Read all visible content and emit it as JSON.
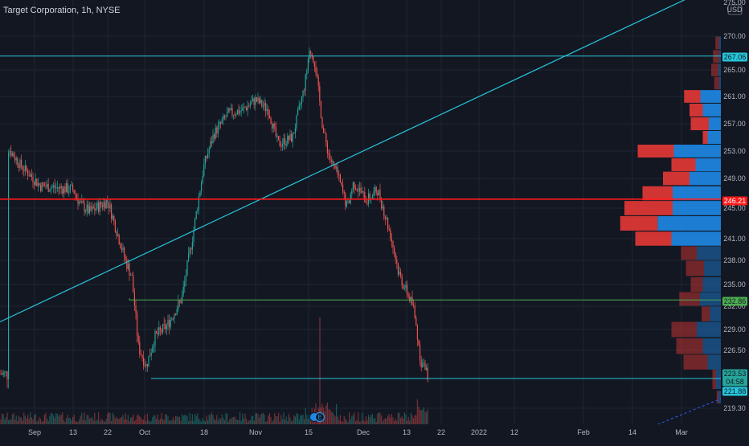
{
  "header": {
    "title": "Target Corporation, 1h, NYSE",
    "currency_top": "275.00",
    "currency": "USD"
  },
  "colors": {
    "background": "#131722",
    "grid": "#1e2433",
    "up": "#26a69a",
    "down": "#ef5350",
    "cyan_line": "#26c6da",
    "red_line": "#ff1a1a",
    "green_line": "#4caf50",
    "vp_buy": "#1e88e5",
    "vp_sell": "#e53935"
  },
  "chart_data": {
    "type": "candlestick",
    "title": "Target Corporation, 1h, NYSE",
    "y_unit": "USD",
    "ylim": [
      217.0,
      275.0
    ],
    "x_ticks": [
      "Sep",
      "13",
      "22",
      "Oct",
      "18",
      "Nov",
      "15",
      "Dec",
      "13",
      "22",
      "2022",
      "12",
      "Feb",
      "14",
      "Mar"
    ],
    "y_ticks": [
      270.0,
      265.0,
      261.0,
      257.0,
      253.0,
      249.0,
      245.0,
      241.0,
      238.0,
      235.0,
      232.0,
      229.0,
      226.5,
      219.3
    ],
    "price_tags": [
      {
        "label": "267.06",
        "value": 267.06,
        "color": "#26c6da",
        "text_color": "#131722"
      },
      {
        "label": "246.21",
        "value": 246.21,
        "color": "#ff1a1a",
        "text_color": "#ffffff"
      },
      {
        "label": "232.86",
        "value": 232.86,
        "color": "#4caf50",
        "text_color": "#131722"
      },
      {
        "label": "223.53",
        "value": 223.53,
        "color": "#26a69a",
        "text_color": "#131722"
      },
      {
        "label": "04:58",
        "value": 222.6,
        "color": "#26a69a",
        "text_color": "#131722"
      },
      {
        "label": "221.88",
        "value": 221.88,
        "color": "#26c6da",
        "text_color": "#131722"
      }
    ],
    "horizontal_levels": [
      267.06,
      246.21,
      232.86,
      221.88
    ],
    "series": [
      {
        "name": "close",
        "points": [
          [
            "Sep",
            253.5
          ],
          [
            "Sep 5",
            251.0
          ],
          [
            "Sep 8",
            248.0
          ],
          [
            "13",
            247.5
          ],
          [
            "Sep 16",
            245.5
          ],
          [
            "Sep 19",
            244.5
          ],
          [
            "22",
            246.0
          ],
          [
            "Sep 25",
            241.0
          ],
          [
            "Sep 27",
            238.0
          ],
          [
            "Sep 28",
            236.0
          ],
          [
            "Sep 29",
            227.0
          ],
          [
            "Oct",
            224.5
          ],
          [
            "Oct 4",
            228.0
          ],
          [
            "Oct 7",
            229.5
          ],
          [
            "Oct 11",
            233.0
          ],
          [
            "Oct 14",
            241.5
          ],
          [
            "18",
            251.0
          ],
          [
            "Oct 21",
            255.5
          ],
          [
            "Oct 25",
            258.5
          ],
          [
            "Oct 28",
            259.0
          ],
          [
            "Nov",
            260.5
          ],
          [
            "Nov 5",
            259.0
          ],
          [
            "Nov 8",
            254.0
          ],
          [
            "Nov 11",
            255.0
          ],
          [
            "15",
            262.0
          ],
          [
            "Nov 16",
            268.0
          ],
          [
            "Nov 17",
            266.0
          ],
          [
            "Nov 19",
            256.0
          ],
          [
            "Nov 22",
            252.0
          ],
          [
            "Nov 26",
            249.5
          ],
          [
            "Dec",
            245.0
          ],
          [
            "Dec 3",
            248.5
          ],
          [
            "Dec 7",
            246.0
          ],
          [
            "Dec 10",
            247.5
          ],
          [
            "13",
            241.5
          ],
          [
            "Dec 15",
            236.5
          ],
          [
            "Dec 17",
            234.0
          ],
          [
            "Dec 20",
            232.0
          ],
          [
            "Dec 21",
            225.0
          ],
          [
            "Dec 22",
            223.53
          ]
        ]
      }
    ],
    "volume_profile_rows": [
      {
        "price": 269.0,
        "buy": 3,
        "sell": 6
      },
      {
        "price": 267.0,
        "buy": 3,
        "sell": 10
      },
      {
        "price": 265.0,
        "buy": 4,
        "sell": 12
      },
      {
        "price": 263.0,
        "buy": 3,
        "sell": 8
      },
      {
        "price": 261.0,
        "buy": 34,
        "sell": 27
      },
      {
        "price": 259.0,
        "buy": 30,
        "sell": 22
      },
      {
        "price": 257.0,
        "buy": 20,
        "sell": 30
      },
      {
        "price": 255.0,
        "buy": 22,
        "sell": 8
      },
      {
        "price": 253.0,
        "buy": 78,
        "sell": 60
      },
      {
        "price": 251.0,
        "buy": 42,
        "sell": 40
      },
      {
        "price": 249.0,
        "buy": 52,
        "sell": 44
      },
      {
        "price": 247.0,
        "buy": 80,
        "sell": 50
      },
      {
        "price": 245.0,
        "buy": 80,
        "sell": 80
      },
      {
        "price": 243.0,
        "buy": 105,
        "sell": 62
      },
      {
        "price": 241.0,
        "buy": 82,
        "sell": 60
      },
      {
        "price": 239.0,
        "buy": 40,
        "sell": 26
      },
      {
        "price": 237.0,
        "buy": 28,
        "sell": 30
      },
      {
        "price": 235.0,
        "buy": 30,
        "sell": 20
      },
      {
        "price": 233.0,
        "buy": 35,
        "sell": 34
      },
      {
        "price": 231.0,
        "buy": 18,
        "sell": 14
      },
      {
        "price": 229.0,
        "buy": 40,
        "sell": 42
      },
      {
        "price": 227.0,
        "buy": 30,
        "sell": 44
      },
      {
        "price": 225.0,
        "buy": 22,
        "sell": 40
      },
      {
        "price": 223.0,
        "buy": 8,
        "sell": 6
      },
      {
        "price": 221.0,
        "buy": 4,
        "sell": 3
      }
    ],
    "trendlines": [
      {
        "kind": "rising-support",
        "from": [
          "Aug 30",
          230.5
        ],
        "to": [
          "Feb 25",
          275.0
        ]
      },
      {
        "kind": "dashed-extension",
        "from": [
          "Feb 14",
          216.5
        ],
        "to": [
          "Mar 10",
          221.5
        ]
      }
    ],
    "grid": true
  }
}
